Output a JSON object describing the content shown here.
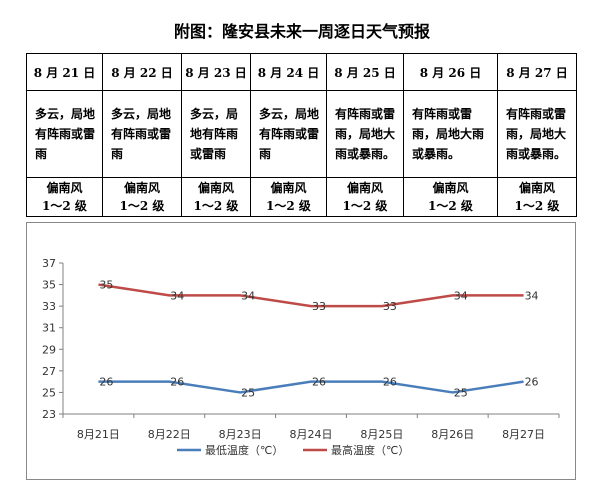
{
  "title": "附图：隆安县未来一周逐日天气预报",
  "days": [
    {
      "date": "8 月 21 日",
      "weather": "多云，局地有阵雨或雷雨",
      "wind": "偏南风",
      "level": "1～2 级"
    },
    {
      "date": "8 月 22 日",
      "weather": "多云，局地有阵雨或雷雨",
      "wind": "偏南风",
      "level": "1～2 级"
    },
    {
      "date": "8 月 23 日",
      "weather": "多云，局地有阵雨或雷雨",
      "wind": "偏南风",
      "level": "1～2 级"
    },
    {
      "date": "8 月 24 日",
      "weather": "多云，局地有阵雨或雷雨",
      "wind": "偏南风",
      "level": "1～2 级"
    },
    {
      "date": "8 月 25 日",
      "weather": "有阵雨或雷雨，局地大雨或暴雨。",
      "wind": "偏南风",
      "level": "1～2 级"
    },
    {
      "date": "8 月 26 日",
      "weather": "有阵雨或雷雨，局地大雨或暴雨。",
      "wind": "偏南风",
      "level": "1～2 级"
    },
    {
      "date": "8 月 27 日",
      "weather": "有阵雨或雷雨，局地大雨或暴雨。",
      "wind": "偏南风",
      "level": "1～2 级"
    }
  ],
  "chart_data": {
    "type": "line",
    "x": [
      "8月21日",
      "8月22日",
      "8月23日",
      "8月24日",
      "8月25日",
      "8月26日",
      "8月27日"
    ],
    "series": [
      {
        "name": "最低温度（℃）",
        "values": [
          26,
          26,
          25,
          26,
          26,
          25,
          26
        ],
        "color": "#4a7ebb"
      },
      {
        "name": "最高温度（℃）",
        "values": [
          35,
          34,
          34,
          33,
          33,
          34,
          34
        ],
        "color": "#be4b48"
      }
    ],
    "yticks": [
      23,
      25,
      27,
      29,
      31,
      33,
      35,
      37
    ],
    "ylim": [
      23,
      37
    ],
    "grid": false,
    "legend": "bottom"
  }
}
